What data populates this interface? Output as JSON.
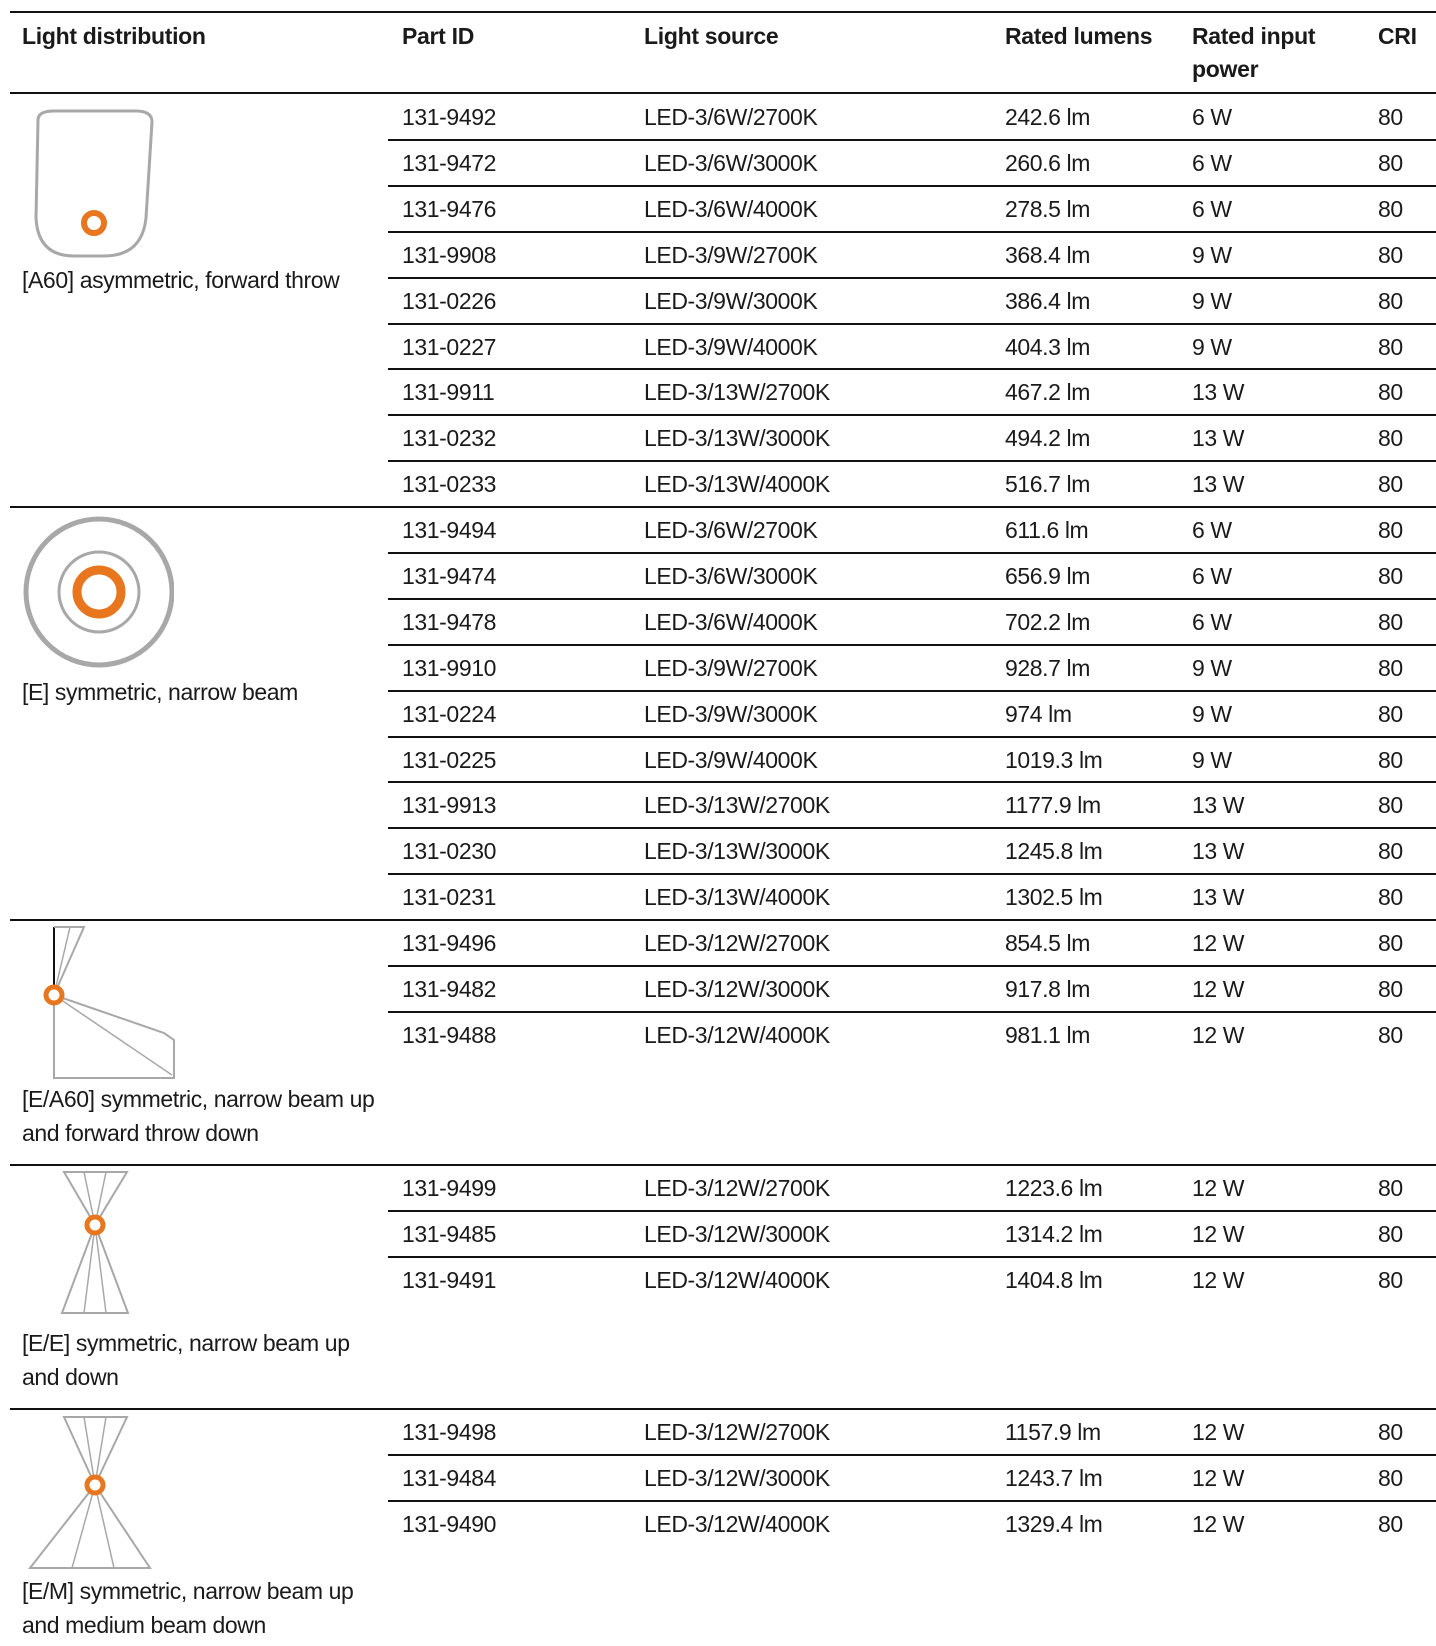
{
  "headers": {
    "light_distribution": "Light distribution",
    "part_id": "Part ID",
    "light_source": "Light source",
    "rated_lumens": "Rated lumens",
    "rated_input_power": "Rated input power",
    "cri": "CRI"
  },
  "colors": {
    "accent": "#E8761E",
    "rule": "#111111",
    "diagram": "#A8A8A8"
  },
  "groups": [
    {
      "title": "[A60] asymmetric, forward throw",
      "icon": "forward-throw-icon",
      "rows": [
        [
          "131-9492",
          "LED-3/6W/2700K",
          "242.6 lm",
          "6 W",
          "80"
        ],
        [
          "131-9472",
          "LED-3/6W/3000K",
          "260.6 lm",
          "6 W",
          "80"
        ],
        [
          "131-9476",
          "LED-3/6W/4000K",
          "278.5 lm",
          "6 W",
          "80"
        ],
        [
          "131-9908",
          "LED-3/9W/2700K",
          "368.4 lm",
          "9 W",
          "80"
        ],
        [
          "131-0226",
          "LED-3/9W/3000K",
          "386.4 lm",
          "9 W",
          "80"
        ],
        [
          "131-0227",
          "LED-3/9W/4000K",
          "404.3 lm",
          "9 W",
          "80"
        ],
        [
          "131-9911",
          "LED-3/13W/2700K",
          "467.2 lm",
          "13 W",
          "80"
        ],
        [
          "131-0232",
          "LED-3/13W/3000K",
          "494.2 lm",
          "13 W",
          "80"
        ],
        [
          "131-0233",
          "LED-3/13W/4000K",
          "516.7 lm",
          "13 W",
          "80"
        ]
      ]
    },
    {
      "title": "[E] symmetric, narrow beam",
      "icon": "narrow-beam-icon",
      "rows": [
        [
          "131-9494",
          "LED-3/6W/2700K",
          "611.6 lm",
          "6 W",
          "80"
        ],
        [
          "131-9474",
          "LED-3/6W/3000K",
          "656.9 lm",
          "6 W",
          "80"
        ],
        [
          "131-9478",
          "LED-3/6W/4000K",
          "702.2 lm",
          "6 W",
          "80"
        ],
        [
          "131-9910",
          "LED-3/9W/2700K",
          "928.7 lm",
          "9 W",
          "80"
        ],
        [
          "131-0224",
          "LED-3/9W/3000K",
          "974 lm",
          "9 W",
          "80"
        ],
        [
          "131-0225",
          "LED-3/9W/4000K",
          "1019.3 lm",
          "9 W",
          "80"
        ],
        [
          "131-9913",
          "LED-3/13W/2700K",
          "1177.9 lm",
          "13 W",
          "80"
        ],
        [
          "131-0230",
          "LED-3/13W/3000K",
          "1245.8 lm",
          "13 W",
          "80"
        ],
        [
          "131-0231",
          "LED-3/13W/4000K",
          "1302.5 lm",
          "13 W",
          "80"
        ]
      ]
    },
    {
      "title": "[E/A60] symmetric, narrow beam up and forward throw down",
      "icon": "wall-beam-icon",
      "rows": [
        [
          "131-9496",
          "LED-3/12W/2700K",
          "854.5 lm",
          "12 W",
          "80"
        ],
        [
          "131-9482",
          "LED-3/12W/3000K",
          "917.8 lm",
          "12 W",
          "80"
        ],
        [
          "131-9488",
          "LED-3/12W/4000K",
          "981.1 lm",
          "12 W",
          "80"
        ]
      ]
    },
    {
      "title": "[E/E] symmetric, narrow beam up and down",
      "icon": "up-down-narrow-icon",
      "rows": [
        [
          "131-9499",
          "LED-3/12W/2700K",
          "1223.6 lm",
          "12 W",
          "80"
        ],
        [
          "131-9485",
          "LED-3/12W/3000K",
          "1314.2 lm",
          "12 W",
          "80"
        ],
        [
          "131-9491",
          "LED-3/12W/4000K",
          "1404.8 lm",
          "12 W",
          "80"
        ]
      ]
    },
    {
      "title": "[E/M] symmetric, narrow beam up and medium beam down",
      "icon": "up-narrow-down-medium-icon",
      "rows": [
        [
          "131-9498",
          "LED-3/12W/2700K",
          "1157.9 lm",
          "12 W",
          "80"
        ],
        [
          "131-9484",
          "LED-3/12W/3000K",
          "1243.7 lm",
          "12 W",
          "80"
        ],
        [
          "131-9490",
          "LED-3/12W/4000K",
          "1329.4 lm",
          "12 W",
          "80"
        ]
      ]
    }
  ]
}
